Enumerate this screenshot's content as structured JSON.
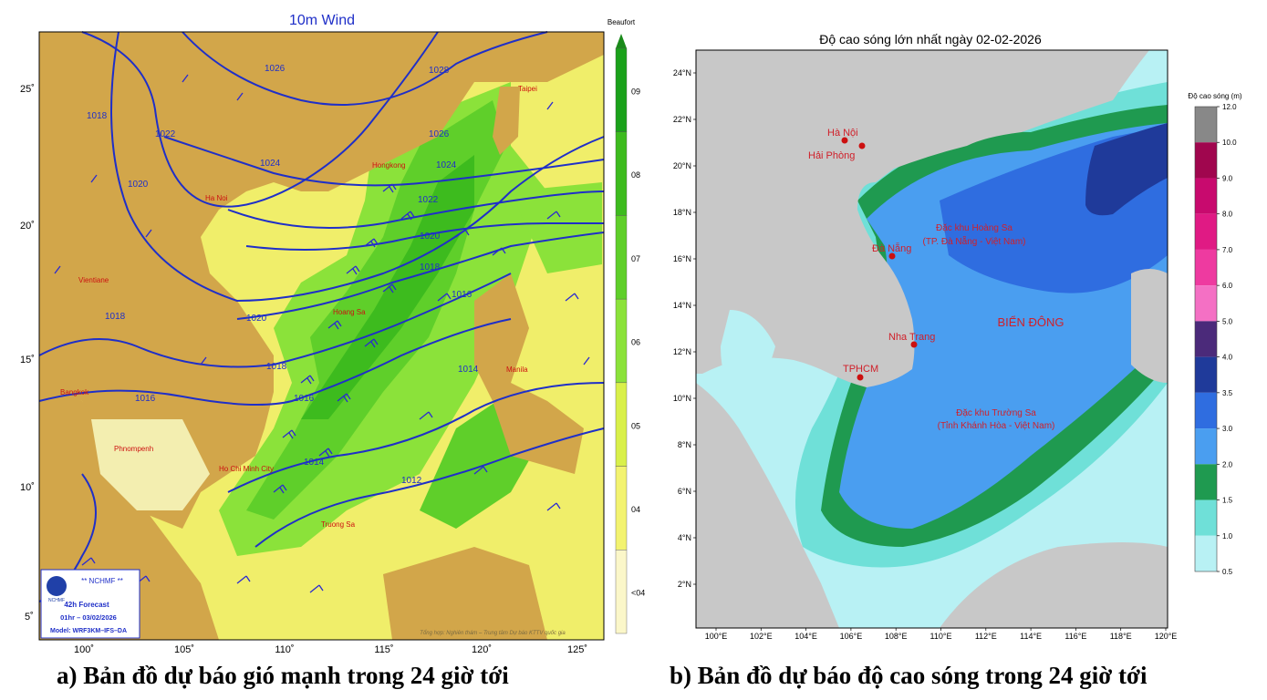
{
  "left_map": {
    "title": "10m Wind",
    "colorbar_title": "Beaufort",
    "colorbar_labels": [
      "09",
      "08",
      "07",
      "06",
      "05",
      "04",
      "<04"
    ],
    "colorbar_colors": [
      "#1aa11a",
      "#3dbb1e",
      "#5fcf2a",
      "#8be23a",
      "#d9f04a",
      "#f3f370",
      "#fbf7c9"
    ],
    "lat_labels": [
      "25˚",
      "20˚",
      "15˚",
      "10˚",
      "5˚"
    ],
    "lon_labels": [
      "100˚",
      "105˚",
      "110˚",
      "115˚",
      "120˚",
      "125˚"
    ],
    "isobar_labels": [
      "1026",
      "1028",
      "1018",
      "1022",
      "1024",
      "1020",
      "1026",
      "1024",
      "1022",
      "1020",
      "1018",
      "1016",
      "1018",
      "1020",
      "1016",
      "1014",
      "1016",
      "1014",
      "1012",
      "1018"
    ],
    "places": [
      "Taipei",
      "Hongkong",
      "Ha Noi",
      "Vientiane",
      "Hoang Sa",
      "Manila",
      "Bangkok",
      "Phnompenh",
      "Ho Chi Minh City",
      "Truong Sa"
    ],
    "info_box": {
      "org": "** NCHMF **",
      "forecast": "42h Forecast",
      "time": "01hr – 03/02/2026",
      "model": "Model: WRF3KM–IFS–DA",
      "logo_text": "NCHMF"
    },
    "credit": "Tổng hợp: Nghiên thám – Trung tâm Dự báo KTTV quốc gia",
    "colors": {
      "land": "#d2a64a",
      "sea_calm": "#f0ee6a",
      "isobar": "#1f2fc8",
      "place": "#cc1010"
    }
  },
  "right_map": {
    "title": "Độ cao sóng lớn nhất ngày 02-02-2026",
    "colorbar_title": "Độ cao sóng (m)",
    "colorbar_levels": [
      "12.0",
      "10.0",
      "9.0",
      "8.0",
      "7.0",
      "6.0",
      "5.0",
      "4.0",
      "3.5",
      "3.0",
      "2.0",
      "1.5",
      "1.0",
      "0.5"
    ],
    "colorbar_colors": [
      "#888888",
      "#a0064e",
      "#c80a6e",
      "#e01a84",
      "#ee3aa0",
      "#f470c4",
      "#4b2a7a",
      "#1f3a9a",
      "#2f6de0",
      "#4a9ef0",
      "#1f9a50",
      "#6fe0d8",
      "#b8f1f4"
    ],
    "lat_labels": [
      "24°N",
      "22°N",
      "20°N",
      "18°N",
      "16°N",
      "14°N",
      "12°N",
      "10°N",
      "8°N",
      "6°N",
      "4°N",
      "2°N"
    ],
    "lon_labels": [
      "100°E",
      "102°E",
      "104°E",
      "106°E",
      "108°E",
      "110°E",
      "112°E",
      "114°E",
      "116°E",
      "118°E",
      "120°E"
    ],
    "places": [
      "Hà Nội",
      "Hải Phòng",
      "Đà Nẵng",
      "Nha Trang",
      "TPHCM"
    ],
    "special_zones": [
      {
        "line1": "Đặc khu Hoàng Sa",
        "line2": "(TP. Đà Nẵng - Việt Nam)"
      },
      {
        "line1": "Đặc khu Trường Sa",
        "line2": "(Tỉnh Khánh Hòa - Việt Nam)"
      }
    ],
    "sea_name": "BIỂN ĐÔNG",
    "colors": {
      "land": "#c8c8c8",
      "label": "#d0202a"
    }
  },
  "captions": {
    "a": "a) Bản đồ dự báo gió mạnh trong 24 giờ tới",
    "b": "b) Bản đồ dự báo độ cao sóng trong 24 giờ tới"
  }
}
